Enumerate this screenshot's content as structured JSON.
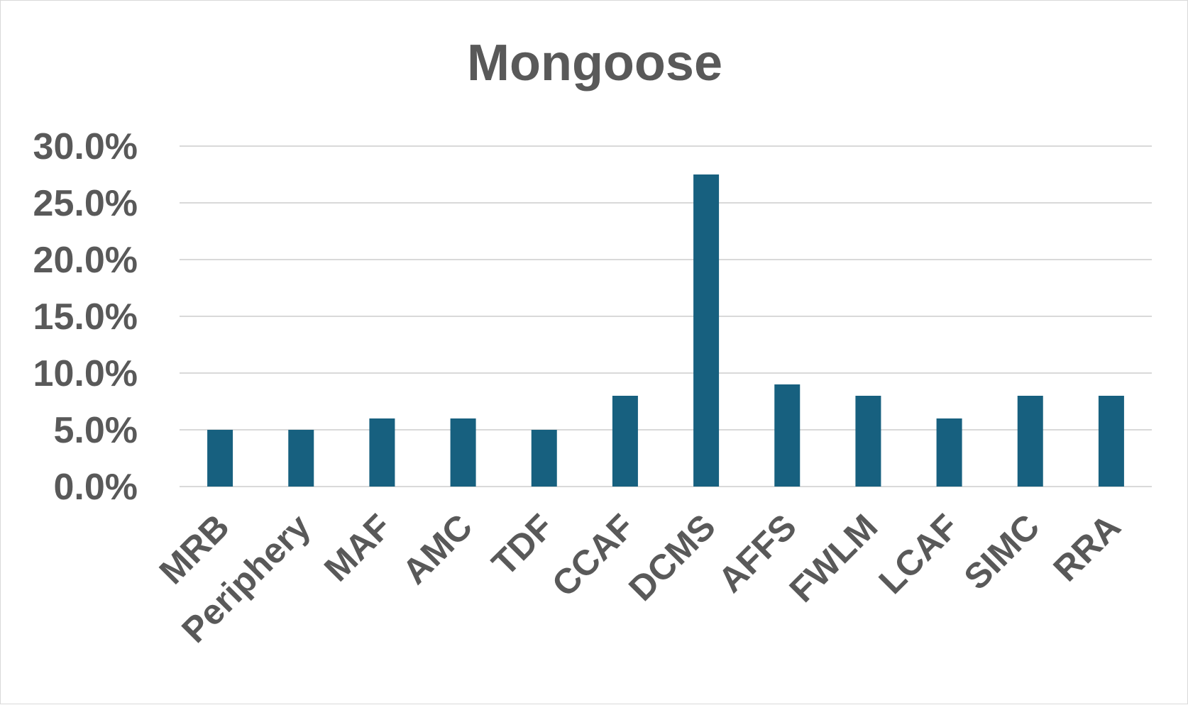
{
  "chart_data": {
    "type": "bar",
    "title": "Mongoose",
    "xlabel": "",
    "ylabel": "",
    "categories": [
      "MRB",
      "Periphery",
      "MAF",
      "AMC",
      "TDF",
      "CCAF",
      "DCMS",
      "AFFS",
      "FWLM",
      "LCAF",
      "SIMC",
      "RRA"
    ],
    "values": [
      5.0,
      5.0,
      6.0,
      6.0,
      5.0,
      8.0,
      27.5,
      9.0,
      8.0,
      6.0,
      8.0,
      8.0
    ],
    "value_format": "percent_1dp",
    "ylim": [
      0,
      30
    ],
    "yticks": [
      0,
      5,
      10,
      15,
      20,
      25,
      30
    ],
    "ytick_labels": [
      "0.0%",
      "5.0%",
      "10.0%",
      "15.0%",
      "20.0%",
      "25.0%",
      "30.0%"
    ],
    "grid": true,
    "legend": "none",
    "bar_color": "#17607F",
    "grid_color": "#D9D9D9",
    "text_color": "#595959"
  }
}
